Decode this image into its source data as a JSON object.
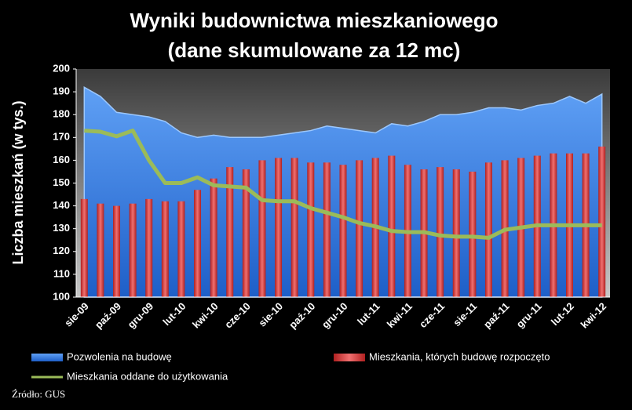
{
  "chart_data": {
    "type": "combo",
    "title": "Wyniki budownictwa mieszkaniowego",
    "subtitle": "(dane skumulowane za 12 mc)",
    "y_label": "Liczba mieszkań (w tys.)",
    "source": "Źródło: GUS",
    "categories": [
      "sie-09",
      null,
      "paź-09",
      null,
      "gru-09",
      null,
      "lut-10",
      null,
      "kwi-10",
      null,
      "cze-10",
      null,
      "sie-10",
      null,
      "paź-10",
      null,
      "gru-10",
      null,
      "lut-11",
      null,
      "kwi-11",
      null,
      "cze-11",
      null,
      "sie-11",
      null,
      "paź-11",
      null,
      "gru-11",
      null,
      "lut-12",
      null,
      "kwi-12"
    ],
    "series": [
      {
        "name": "Pozwolenia na budowę",
        "kind": "area",
        "color": "#3a7fe0",
        "values": [
          192,
          188,
          181,
          180,
          179,
          177,
          172,
          170,
          171,
          170,
          170,
          170,
          171,
          172,
          173,
          175,
          174,
          173,
          172,
          176,
          175,
          177,
          180,
          180,
          181,
          183,
          183,
          182,
          184,
          185,
          188,
          185,
          189
        ]
      },
      {
        "name": "Mieszkania, których budowę rozpoczęto",
        "kind": "bar",
        "color": "#d93a36",
        "values": [
          143,
          141,
          140,
          141,
          143,
          142,
          142,
          147,
          152,
          157,
          156,
          160,
          161,
          161,
          159,
          159,
          158,
          160,
          161,
          162,
          158,
          156,
          157,
          156,
          155,
          159,
          160,
          161,
          162,
          163,
          163,
          163,
          166
        ]
      },
      {
        "name": "Mieszkania oddane do użytkowania",
        "kind": "line",
        "color": "#9bbb59",
        "values": [
          173,
          172.5,
          170.5,
          173,
          160,
          150,
          150,
          152.5,
          149,
          148.5,
          148,
          142.5,
          142,
          142,
          139,
          137,
          135,
          132.5,
          131,
          129,
          128.5,
          128.5,
          127,
          126.5,
          126.5,
          126,
          129.5,
          130.5,
          131.5,
          131.5,
          131.5,
          131.5,
          131.5
        ]
      }
    ],
    "ylim": [
      100,
      200
    ],
    "yticks": [
      100,
      110,
      120,
      130,
      140,
      150,
      160,
      170,
      180,
      190,
      200
    ]
  }
}
